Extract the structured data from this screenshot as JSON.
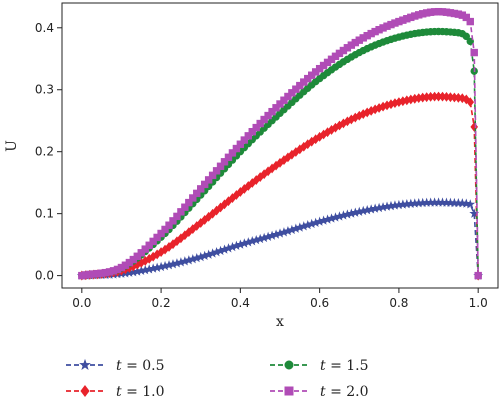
{
  "chart_data": {
    "type": "line",
    "title": "",
    "xlabel": "x",
    "ylabel": "U",
    "xlim": [
      -0.05,
      1.05
    ],
    "ylim": [
      -0.02,
      0.44
    ],
    "xticks": [
      0.0,
      0.2,
      0.4,
      0.6,
      0.8,
      1.0
    ],
    "xtick_labels": [
      "0.0",
      "0.2",
      "0.4",
      "0.6",
      "0.8",
      "1.0"
    ],
    "yticks": [
      0.0,
      0.1,
      0.2,
      0.3,
      0.4
    ],
    "ytick_labels": [
      "0.0",
      "0.1",
      "0.2",
      "0.3",
      "0.4"
    ],
    "grid": false,
    "legend_placement": "below",
    "x": [
      0.0,
      0.1,
      0.2,
      0.3,
      0.4,
      0.5,
      0.6,
      0.7,
      0.8,
      0.9,
      0.95,
      0.98,
      0.99,
      1.0
    ],
    "series": [
      {
        "name": "t = 0.5",
        "label_var": "t",
        "label_rest": " = 0.5",
        "color": "#3f4ea0",
        "marker": "star",
        "values": [
          0.0,
          0.003,
          0.014,
          0.03,
          0.05,
          0.068,
          0.087,
          0.103,
          0.114,
          0.118,
          0.117,
          0.115,
          0.1,
          0.0
        ]
      },
      {
        "name": "t = 1.0",
        "label_var": "t",
        "label_rest": " = 1.0",
        "color": "#e8232b",
        "marker": "diamond",
        "values": [
          0.0,
          0.008,
          0.038,
          0.085,
          0.135,
          0.182,
          0.224,
          0.258,
          0.28,
          0.289,
          0.287,
          0.28,
          0.24,
          0.0
        ]
      },
      {
        "name": "t = 1.5",
        "label_var": "t",
        "label_rest": " = 1.5",
        "color": "#1e8a3a",
        "marker": "circle",
        "values": [
          0.0,
          0.012,
          0.062,
          0.13,
          0.2,
          0.262,
          0.318,
          0.36,
          0.385,
          0.394,
          0.392,
          0.378,
          0.33,
          0.0
        ]
      },
      {
        "name": "t = 2.0",
        "label_var": "t",
        "label_rest": " = 2.0",
        "color": "#b04cb6",
        "marker": "square",
        "values": [
          0.0,
          0.013,
          0.068,
          0.14,
          0.212,
          0.277,
          0.334,
          0.38,
          0.41,
          0.426,
          0.422,
          0.41,
          0.36,
          0.0
        ]
      }
    ]
  }
}
